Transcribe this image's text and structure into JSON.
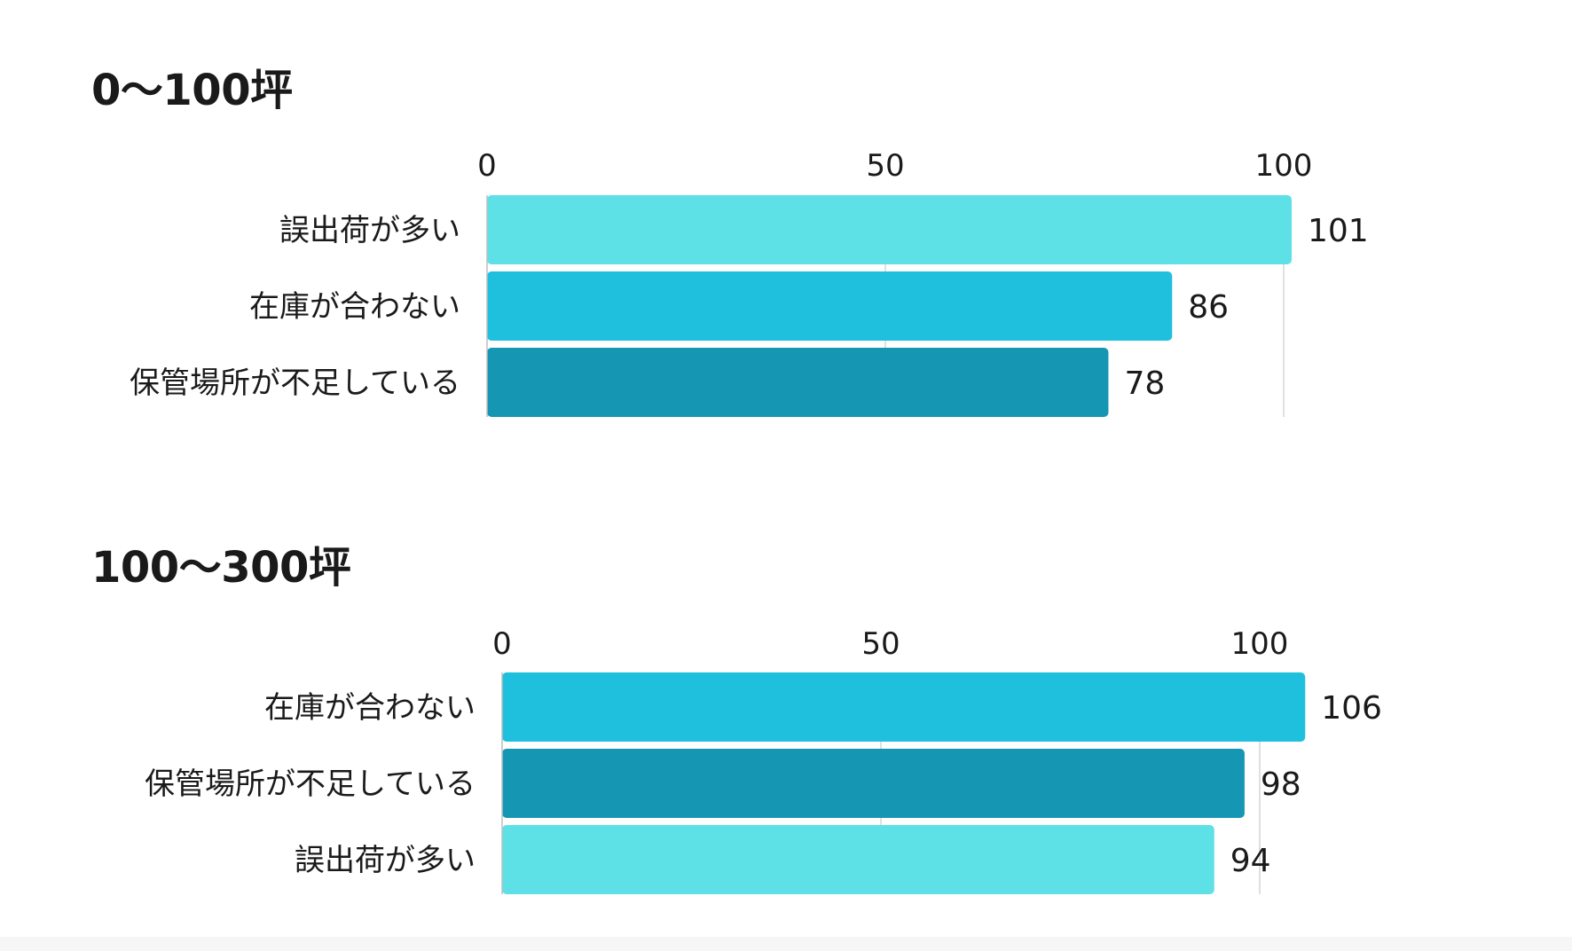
{
  "colors": {
    "light": "#5de1e6",
    "mid": "#1ec0dd",
    "dark": "#1597b3",
    "background": "#ffffff"
  },
  "chart_data": [
    {
      "type": "bar",
      "orientation": "horizontal",
      "title": "0～100坪",
      "categories": [
        "誤出荷が多い",
        "在庫が合わない",
        "保管場所が不足している"
      ],
      "values": [
        101,
        86,
        78
      ],
      "bar_colors": [
        "#5de1e6",
        "#1ec0dd",
        "#1597b3"
      ],
      "value_labels": [
        "101",
        "86",
        "78"
      ],
      "xticks": [
        0,
        50,
        100
      ],
      "xtick_labels": [
        "0",
        "50",
        "100"
      ],
      "xaxis_position": "top",
      "grid": true,
      "legend": false
    },
    {
      "type": "bar",
      "orientation": "horizontal",
      "title": "100～300坪",
      "categories": [
        "在庫が合わない",
        "保管場所が不足している",
        "誤出荷が多い"
      ],
      "values": [
        106,
        98,
        94
      ],
      "bar_colors": [
        "#1ec0dd",
        "#1597b3",
        "#5de1e6"
      ],
      "value_labels": [
        "106",
        "98",
        "94"
      ],
      "xticks": [
        0,
        50,
        100
      ],
      "xtick_labels": [
        "0",
        "50",
        "100"
      ],
      "xaxis_position": "top",
      "grid": true,
      "legend": false
    }
  ]
}
